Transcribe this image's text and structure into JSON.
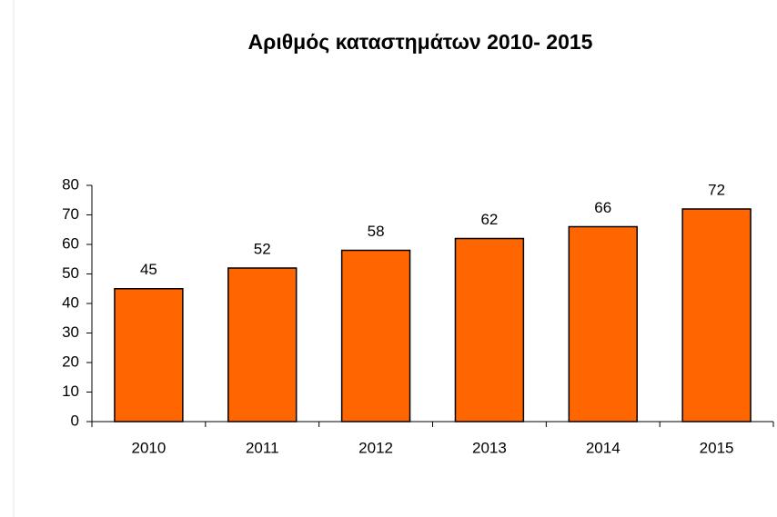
{
  "chart_data": {
    "type": "bar",
    "title": "Αριθμός καταστημάτων 2010- 2015",
    "categories": [
      "2010",
      "2011",
      "2012",
      "2013",
      "2014",
      "2015"
    ],
    "values": [
      45,
      52,
      58,
      62,
      66,
      72
    ],
    "color": "#ff6600",
    "ylim": [
      0,
      80
    ],
    "yticks": [
      0,
      10,
      20,
      30,
      40,
      50,
      60,
      70,
      80
    ],
    "grid": false
  }
}
